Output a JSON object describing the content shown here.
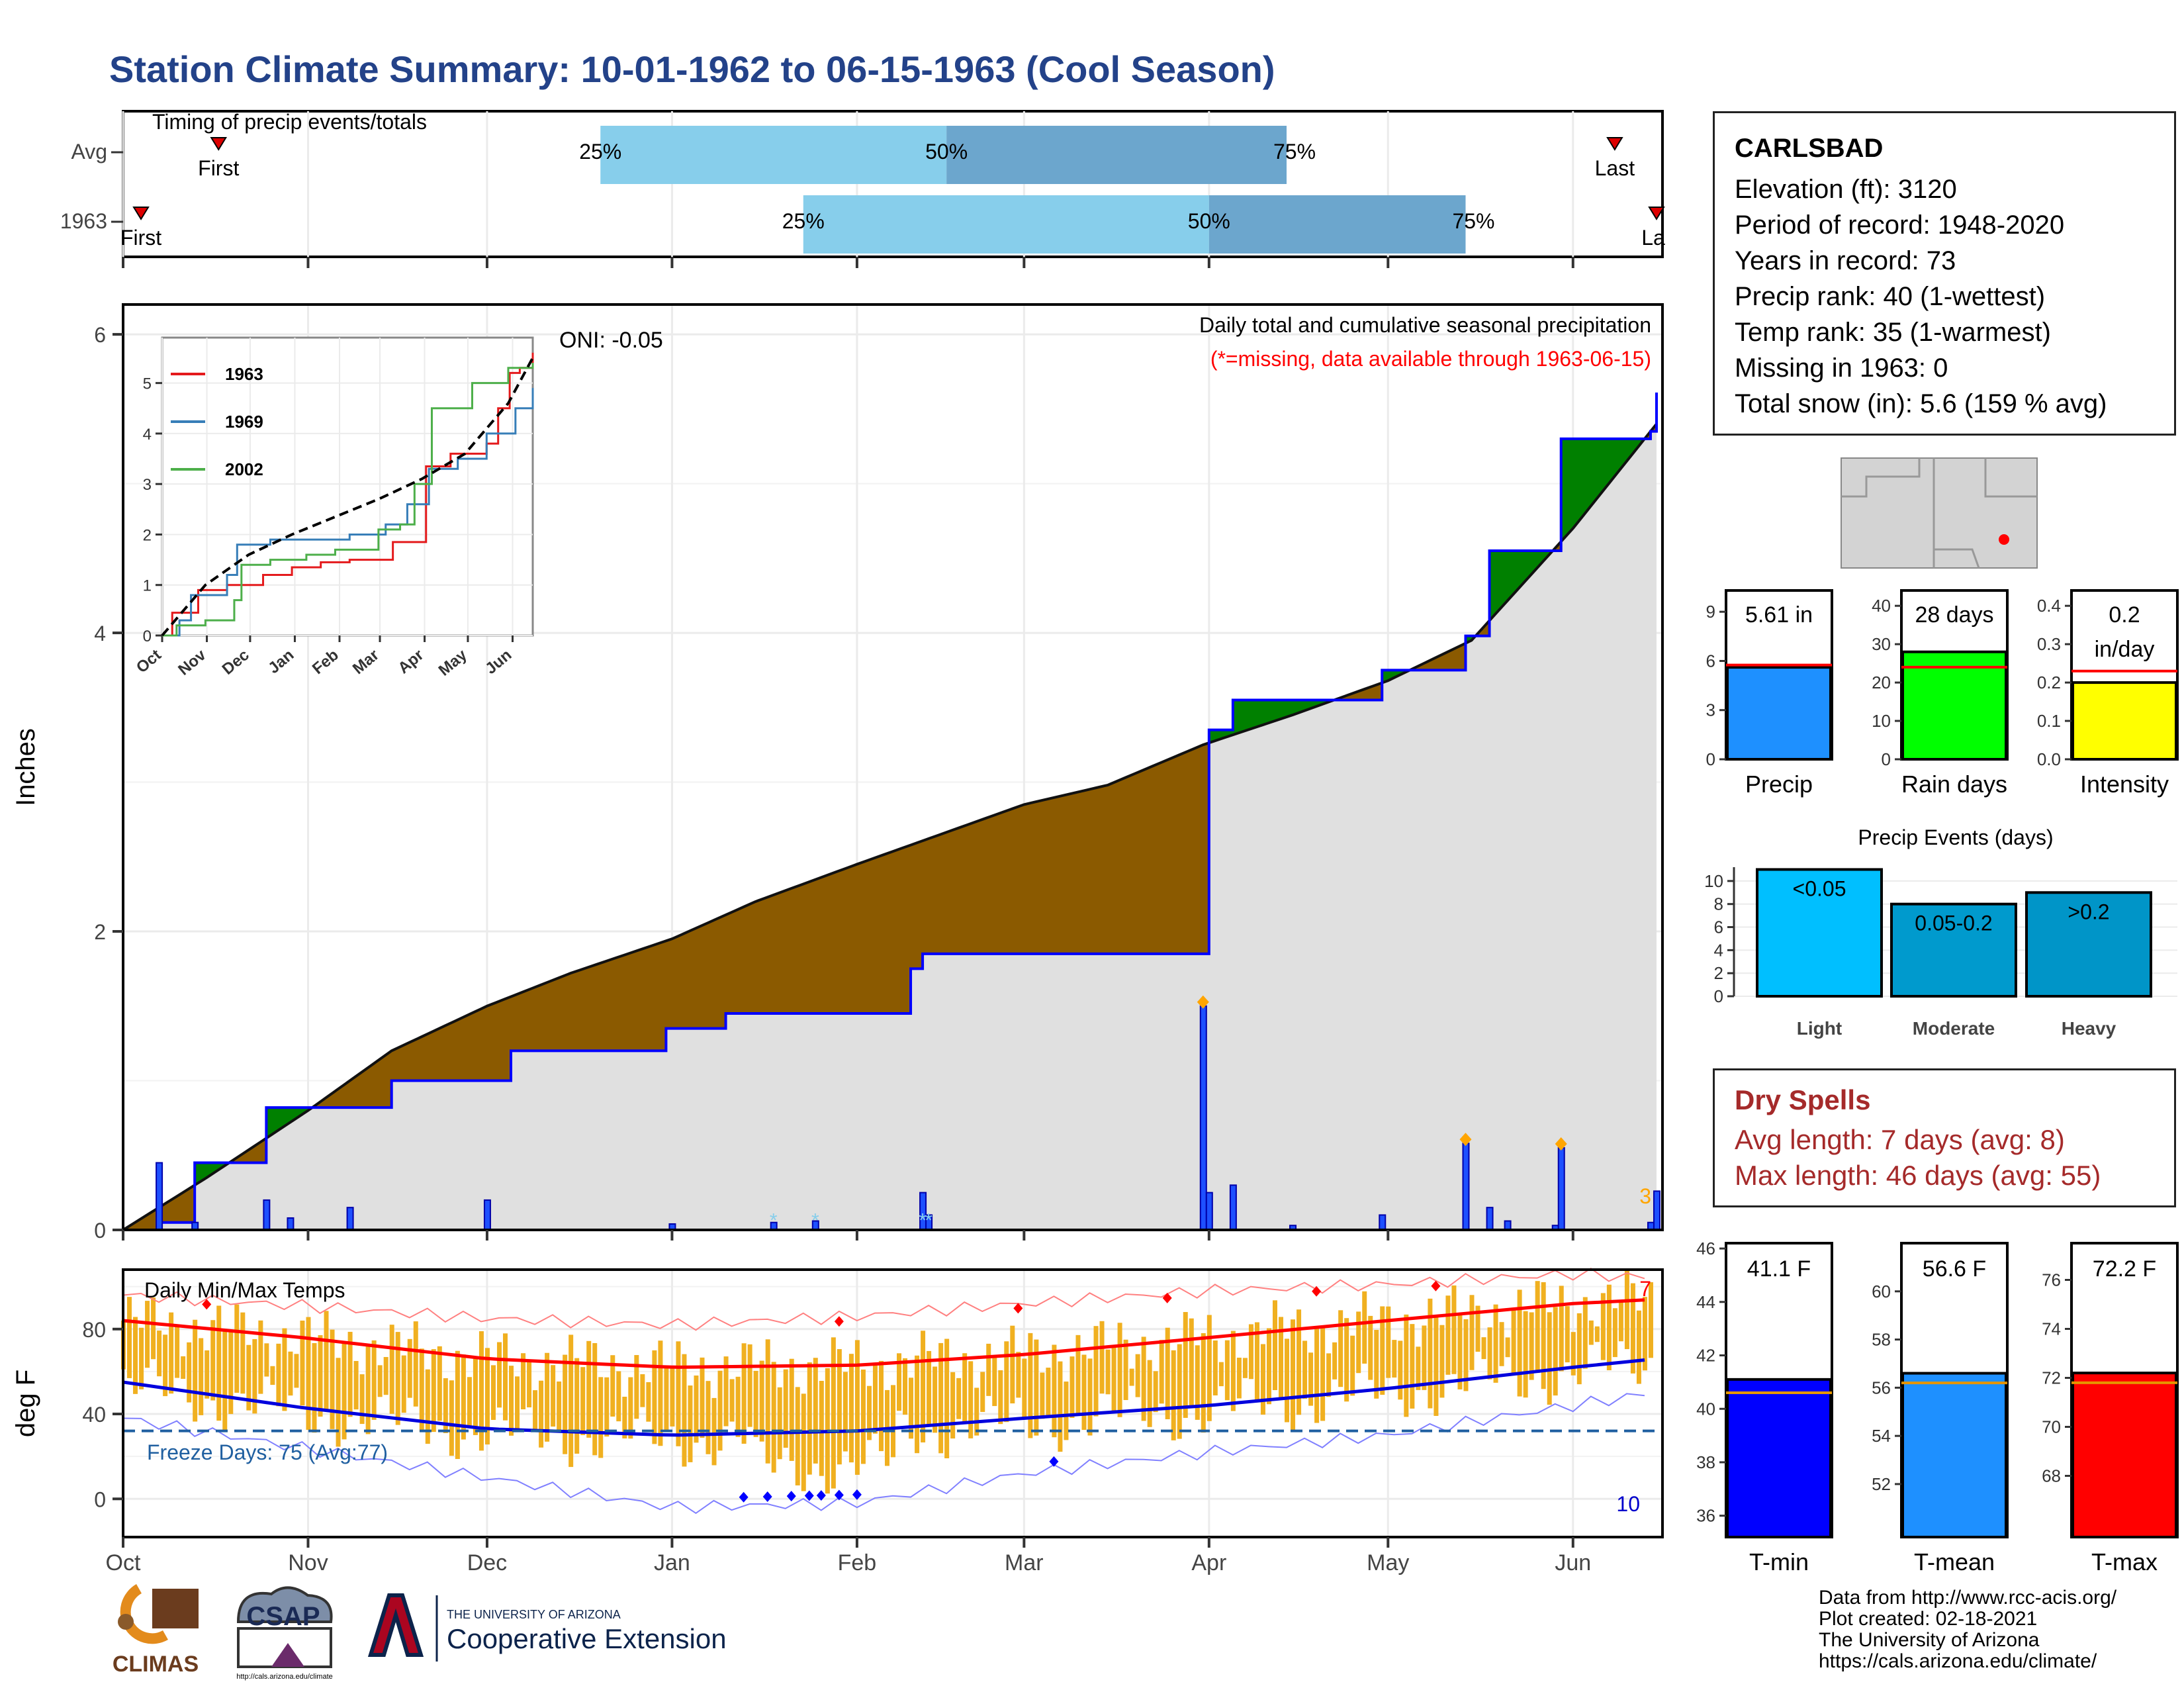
{
  "title": "Station Climate Summary: 10-01-1962 to 06-15-1963 (Cool Season)",
  "timing": {
    "panel_label": "Timing of precip events/totals",
    "rows": [
      {
        "label": "Avg",
        "first_label": "First",
        "last_label": "Last",
        "first_date": "1962-10-17",
        "last_date": "1963-06-08",
        "p25_date": "1962-12-20",
        "p50_date": "1963-02-16",
        "p75_date": "1963-04-14"
      },
      {
        "label": "1963",
        "first_label": "First",
        "last_label": "La",
        "first_date": "1962-10-04",
        "last_date": "1963-06-15",
        "p25_date": "1963-01-23",
        "p50_date": "1963-04-01",
        "p75_date": "1963-05-14"
      }
    ],
    "pct_labels": [
      "25%",
      "50%",
      "75%"
    ],
    "colors": {
      "light": "#87ceeb",
      "dark": "#6ca6cd",
      "marker": "#dd0000"
    }
  },
  "precip": {
    "ylabel": "Inches",
    "yticks": [
      0,
      2,
      4,
      6
    ],
    "ylim": [
      0,
      6.2
    ],
    "title": "Daily total and cumulative seasonal precipitation",
    "missing_note": "(*=missing, data available through 1963-06-15)",
    "oni": "ONI: -0.05",
    "corner_count": "3",
    "colors": {
      "above": "#008000",
      "below": "#8b5a00",
      "normal_fill": "#e0e0e0",
      "line": "#0000ff",
      "bar": "#1e50ff",
      "diamond": "#ffa500"
    }
  },
  "inset": {
    "yticks": [
      "0",
      "1",
      "2",
      "3",
      "4",
      "5"
    ],
    "months": [
      "Oct",
      "Nov",
      "Dec",
      "Jan",
      "Feb",
      "Mar",
      "Apr",
      "May",
      "Jun"
    ],
    "legend": [
      {
        "name": "1963",
        "color": "#e41a1c"
      },
      {
        "name": "1969",
        "color": "#377eb8"
      },
      {
        "name": "2002",
        "color": "#4daf4a"
      }
    ]
  },
  "temp": {
    "ylabel": "deg F",
    "title": "Daily Min/Max Temps",
    "yticks": [
      0,
      40,
      80
    ],
    "freeze_label": "Freeze Days: 75 (Avg:77)",
    "count_max": "7",
    "count_min": "10",
    "colors": {
      "bar": "#f0b020",
      "max": "#ff0000",
      "min": "#0000dd",
      "freeze": "#1f5fa0"
    }
  },
  "months": [
    "Oct",
    "Nov",
    "Dec",
    "Jan",
    "Feb",
    "Mar",
    "Apr",
    "May",
    "Jun"
  ],
  "station": {
    "name": "CARLSBAD",
    "lines": [
      "Elevation (ft): 3120",
      "Period of record: 1948-2020",
      "Years in record: 73",
      "Precip rank: 40 (1-wettest)",
      "Temp rank: 35 (1-warmest)",
      "Missing in 1963: 0",
      "Total snow (in): 5.6 (159 % avg)"
    ]
  },
  "summary_bars": [
    {
      "label": "Precip",
      "value": 5.61,
      "value_text": "5.61 in",
      "avg": 5.75,
      "ymax": 10.3,
      "ticks": [
        "0",
        "3",
        "6",
        "9"
      ],
      "tick_vals": [
        0,
        3,
        6,
        9
      ],
      "color": "#1e90ff"
    },
    {
      "label": "Rain days",
      "value": 28,
      "value_text": "28 days",
      "avg": 24,
      "ymax": 44,
      "ticks": [
        "0",
        "10",
        "20",
        "30",
        "40"
      ],
      "tick_vals": [
        0,
        10,
        20,
        30,
        40
      ],
      "color": "#00ff00"
    },
    {
      "label": "Intensity",
      "value": 0.2,
      "value_text": "0.2",
      "value_text2": "in/day",
      "avg": 0.23,
      "ymax": 0.44,
      "ticks": [
        "0.0",
        "0.1",
        "0.2",
        "0.3",
        "0.4"
      ],
      "tick_vals": [
        0,
        0.1,
        0.2,
        0.3,
        0.4
      ],
      "color": "#ffff00"
    }
  ],
  "precip_events": {
    "title": "Precip Events (days)",
    "categories": [
      "Light",
      "Moderate",
      "Heavy"
    ],
    "values": [
      11,
      8,
      9
    ],
    "value_labels": [
      "<0.05",
      "0.05-0.2",
      ">0.2"
    ],
    "ticks": [
      0,
      2,
      4,
      6,
      8,
      10
    ],
    "colors": [
      "#00bfff",
      "#009acd",
      "#0095c8"
    ]
  },
  "dry_spells": {
    "title": "Dry Spells",
    "avg_length": "Avg length: 7 days (avg: 8)",
    "max_length": "Max length: 46 days (avg: 55)"
  },
  "temp_bars": [
    {
      "label": "T-min",
      "value": 41.1,
      "value_text": "41.1 F",
      "avg": 40.6,
      "ymin": 35.2,
      "ymax": 46.2,
      "ticks": [
        36,
        38,
        40,
        42,
        44,
        46
      ],
      "color": "#0000ff"
    },
    {
      "label": "T-mean",
      "value": 56.6,
      "value_text": "56.6 F",
      "avg": 56.2,
      "ymin": 49.8,
      "ymax": 62,
      "ticks": [
        52,
        54,
        56,
        58,
        60
      ],
      "color": "#1e90ff"
    },
    {
      "label": "T-max",
      "value": 72.2,
      "value_text": "72.2 F",
      "avg": 71.8,
      "ymin": 65.5,
      "ymax": 77.5,
      "ticks": [
        68,
        70,
        72,
        74,
        76
      ],
      "color": "#ff0000"
    }
  ],
  "credits": [
    "Data from http://www.rcc-acis.org/",
    "Plot created: 02-18-2021",
    "The University of Arizona",
    "https://cals.arizona.edu/climate/"
  ],
  "logos": {
    "climas": "CLIMAS",
    "csap": "CSAP",
    "csap_url": "http://cals.arizona.edu/climate",
    "ua_small": "THE UNIVERSITY OF ARIZONA",
    "ua_big": "Cooperative Extension"
  },
  "chart_data": [
    {
      "type": "area",
      "title": "Daily total and cumulative seasonal precipitation",
      "ylabel": "Inches",
      "ylim": [
        0,
        6.2
      ],
      "x_range": [
        "1962-10-01",
        "1963-06-15"
      ],
      "series": [
        {
          "name": "cumulative",
          "x": [
            "1962-10-01",
            "1962-10-07",
            "1962-10-13",
            "1962-10-18",
            "1962-10-25",
            "1962-11-15",
            "1962-12-05",
            "1962-12-31",
            "1963-01-10",
            "1963-01-20",
            "1963-02-10",
            "1963-02-12",
            "1963-03-31",
            "1963-04-01",
            "1963-04-05",
            "1963-04-30",
            "1963-05-14",
            "1963-05-18",
            "1963-05-30",
            "1963-06-14",
            "1963-06-15"
          ],
          "values": [
            0.0,
            0.05,
            0.45,
            0.45,
            0.82,
            1.0,
            1.2,
            1.35,
            1.45,
            1.45,
            1.75,
            1.85,
            1.85,
            3.35,
            3.55,
            3.75,
            3.98,
            4.55,
            5.3,
            5.35,
            5.61
          ]
        },
        {
          "name": "normal",
          "x": [
            "1962-10-01",
            "1962-10-15",
            "1962-11-01",
            "1962-11-15",
            "1962-12-01",
            "1962-12-15",
            "1963-01-01",
            "1963-01-15",
            "1963-02-01",
            "1963-02-15",
            "1963-03-01",
            "1963-03-15",
            "1963-03-31",
            "1963-04-15",
            "1963-05-01",
            "1963-05-15",
            "1963-06-01",
            "1963-06-15"
          ],
          "values": [
            0.0,
            0.35,
            0.8,
            1.2,
            1.5,
            1.72,
            1.95,
            2.2,
            2.45,
            2.65,
            2.85,
            2.98,
            3.25,
            3.45,
            3.68,
            3.95,
            4.7,
            5.4
          ]
        },
        {
          "name": "daily",
          "x": [
            "1962-10-07",
            "1962-10-13",
            "1962-10-25",
            "1962-10-29",
            "1962-11-08",
            "1962-12-01",
            "1963-01-01",
            "1963-01-18",
            "1963-01-25",
            "1963-02-12",
            "1963-02-13",
            "1963-03-31",
            "1963-04-01",
            "1963-04-05",
            "1963-04-15",
            "1963-04-30",
            "1963-05-14",
            "1963-05-18",
            "1963-05-21",
            "1963-05-29",
            "1963-05-30",
            "1963-06-14",
            "1963-06-15"
          ],
          "values": [
            0.45,
            0.05,
            0.2,
            0.08,
            0.15,
            0.2,
            0.04,
            0.05,
            0.06,
            0.25,
            0.1,
            1.5,
            0.25,
            0.3,
            0.03,
            0.1,
            0.58,
            0.15,
            0.06,
            0.03,
            0.55,
            0.05,
            0.26
          ]
        }
      ]
    },
    {
      "type": "line",
      "title": "",
      "xlabel": "",
      "ylabel": "",
      "categories": [
        "Oct",
        "Nov",
        "Dec",
        "Jan",
        "Feb",
        "Mar",
        "Apr",
        "May",
        "Jun"
      ],
      "ylim": [
        0,
        6
      ],
      "series": [
        {
          "name": "1963",
          "x": [
            0,
            7,
            13,
            25,
            45,
            70,
            90,
            110,
            130,
            160,
            180,
            183,
            200,
            225,
            233,
            241,
            248,
            257
          ],
          "values": [
            0,
            0.45,
            0.45,
            0.9,
            1.0,
            1.2,
            1.35,
            1.45,
            1.5,
            1.85,
            1.85,
            3.35,
            3.6,
            3.8,
            4.5,
            5.2,
            5.3,
            5.6
          ]
        },
        {
          "name": "1969",
          "x": [
            0,
            12,
            20,
            45,
            52,
            75,
            100,
            130,
            155,
            170,
            185,
            205,
            225,
            245,
            257
          ],
          "values": [
            0,
            0.3,
            0.8,
            1.2,
            1.8,
            1.9,
            1.9,
            2.0,
            2.2,
            2.6,
            3.3,
            3.5,
            4.0,
            4.5,
            4.9
          ]
        },
        {
          "name": "2002",
          "x": [
            0,
            10,
            30,
            50,
            55,
            75,
            100,
            120,
            150,
            165,
            175,
            187,
            215,
            240,
            257
          ],
          "values": [
            0,
            0.2,
            0.3,
            0.7,
            1.4,
            1.5,
            1.6,
            1.7,
            2.1,
            2.2,
            3.0,
            4.5,
            5.0,
            5.3,
            5.4
          ]
        },
        {
          "name": "average",
          "x": [
            0,
            30,
            60,
            90,
            120,
            150,
            180,
            210,
            240,
            257
          ],
          "values": [
            0,
            1.0,
            1.6,
            2.0,
            2.35,
            2.7,
            3.1,
            3.6,
            4.6,
            5.5
          ]
        }
      ]
    },
    {
      "type": "line",
      "title": "Daily Min/Max Temps",
      "ylabel": "deg F",
      "ylim": [
        -18,
        108
      ],
      "categories": [
        "Oct",
        "Nov",
        "Dec",
        "Jan",
        "Feb",
        "Mar",
        "Apr",
        "May",
        "Jun"
      ],
      "series": [
        {
          "name": "normal_max",
          "x": [
            0,
            30,
            61,
            92,
            123,
            151,
            182,
            212,
            243,
            257
          ],
          "values": [
            84,
            76,
            66,
            62,
            63,
            68,
            76,
            84,
            92,
            94
          ]
        },
        {
          "name": "normal_min",
          "x": [
            0,
            30,
            61,
            92,
            123,
            151,
            182,
            212,
            243,
            257
          ],
          "values": [
            55,
            43,
            33,
            30,
            32,
            38,
            44,
            52,
            62,
            66
          ]
        },
        {
          "name": "record_max",
          "x": [
            0,
            30,
            61,
            92,
            123,
            151,
            182,
            212,
            243,
            257
          ],
          "values": [
            96,
            91,
            85,
            82,
            86,
            92,
            98,
            101,
            106,
            104
          ]
        },
        {
          "name": "record_min",
          "x": [
            0,
            30,
            61,
            92,
            123,
            151,
            182,
            212,
            243,
            257
          ],
          "values": [
            38,
            24,
            10,
            -4,
            -2,
            12,
            22,
            30,
            44,
            50
          ]
        }
      ],
      "freeze_line": 32
    }
  ]
}
